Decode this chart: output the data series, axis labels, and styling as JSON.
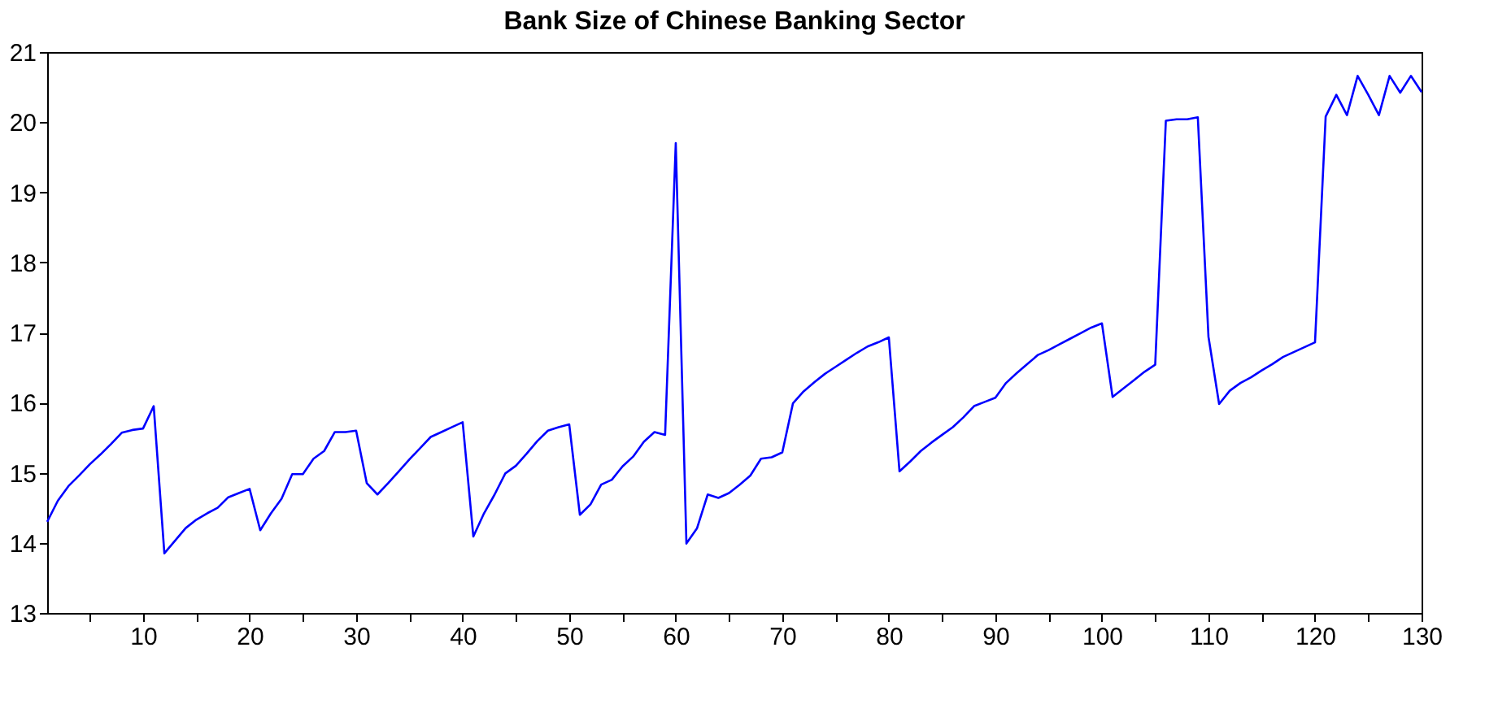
{
  "chart_data": {
    "type": "line",
    "title": "Bank Size of Chinese Banking Sector",
    "x": [
      1,
      2,
      3,
      4,
      5,
      6,
      7,
      8,
      9,
      10,
      11,
      12,
      13,
      14,
      15,
      16,
      17,
      18,
      19,
      20,
      21,
      22,
      23,
      24,
      25,
      26,
      27,
      28,
      29,
      30,
      31,
      32,
      33,
      34,
      35,
      36,
      37,
      38,
      39,
      40,
      41,
      42,
      43,
      44,
      45,
      46,
      47,
      48,
      49,
      50,
      51,
      52,
      53,
      54,
      55,
      56,
      57,
      58,
      59,
      60,
      61,
      62,
      63,
      64,
      65,
      66,
      67,
      68,
      69,
      70,
      71,
      72,
      73,
      74,
      75,
      76,
      77,
      78,
      79,
      80,
      81,
      82,
      83,
      84,
      85,
      86,
      87,
      88,
      89,
      90,
      91,
      92,
      93,
      94,
      95,
      96,
      97,
      98,
      99,
      100,
      101,
      102,
      103,
      104,
      105,
      106,
      107,
      108,
      109,
      110,
      111,
      112,
      113,
      114,
      115,
      116,
      117,
      118,
      119,
      120,
      121,
      122,
      123,
      124,
      125,
      126,
      127,
      128,
      129,
      130
    ],
    "series": [
      {
        "color": "#0000ff",
        "values": [
          14.3,
          14.6,
          14.81,
          14.96,
          15.12,
          15.26,
          15.41,
          15.57,
          15.61,
          15.63,
          15.95,
          13.85,
          14.03,
          14.21,
          14.33,
          14.42,
          14.5,
          14.65,
          14.71,
          14.77,
          14.18,
          14.42,
          14.63,
          14.98,
          14.98,
          15.2,
          15.31,
          15.58,
          15.58,
          15.6,
          14.85,
          14.69,
          14.85,
          15.02,
          15.19,
          15.35,
          15.51,
          15.58,
          15.65,
          15.72,
          14.09,
          14.42,
          14.69,
          14.99,
          15.1,
          15.27,
          15.45,
          15.6,
          15.65,
          15.69,
          14.4,
          14.55,
          14.83,
          14.9,
          15.09,
          15.23,
          15.44,
          15.58,
          15.54,
          19.7,
          13.99,
          14.21,
          14.69,
          14.64,
          14.71,
          14.83,
          14.96,
          15.2,
          15.22,
          15.29,
          15.99,
          16.16,
          16.29,
          16.41,
          16.51,
          16.61,
          16.71,
          16.8,
          16.86,
          16.93,
          15.02,
          15.16,
          15.31,
          15.43,
          15.54,
          15.65,
          15.79,
          15.95,
          16.01,
          16.07,
          16.28,
          16.42,
          16.55,
          16.68,
          16.75,
          16.83,
          16.91,
          16.99,
          17.07,
          17.13,
          16.08,
          16.2,
          16.32,
          16.44,
          16.54,
          20.02,
          20.04,
          20.04,
          20.07,
          16.94,
          15.98,
          16.17,
          16.28,
          16.36,
          16.46,
          16.55,
          16.65,
          16.72,
          16.79,
          16.86,
          20.08,
          20.39,
          20.1,
          20.66,
          20.39,
          20.1,
          20.66,
          20.42,
          20.66,
          20.43
        ]
      }
    ],
    "xlim": [
      1,
      130
    ],
    "xticks": [
      {
        "value": 5,
        "label": null
      },
      10,
      {
        "value": 15,
        "label": null
      },
      20,
      {
        "value": 25,
        "label": null
      },
      30,
      {
        "value": 35,
        "label": null
      },
      40,
      {
        "value": 45,
        "label": null
      },
      50,
      {
        "value": 55,
        "label": null
      },
      60,
      {
        "value": 65,
        "label": null
      },
      70,
      {
        "value": 75,
        "label": null
      },
      80,
      {
        "value": 85,
        "label": null
      },
      90,
      {
        "value": 95,
        "label": null
      },
      100,
      {
        "value": 105,
        "label": null
      },
      110,
      {
        "value": 115,
        "label": null
      },
      120,
      {
        "value": 125,
        "label": null
      },
      130
    ],
    "ylim": [
      13,
      21
    ],
    "yticks": [
      13,
      14,
      15,
      16,
      17,
      18,
      19,
      20,
      21
    ],
    "grid": false,
    "legend": false,
    "marker": "none",
    "line_style": "solid"
  }
}
